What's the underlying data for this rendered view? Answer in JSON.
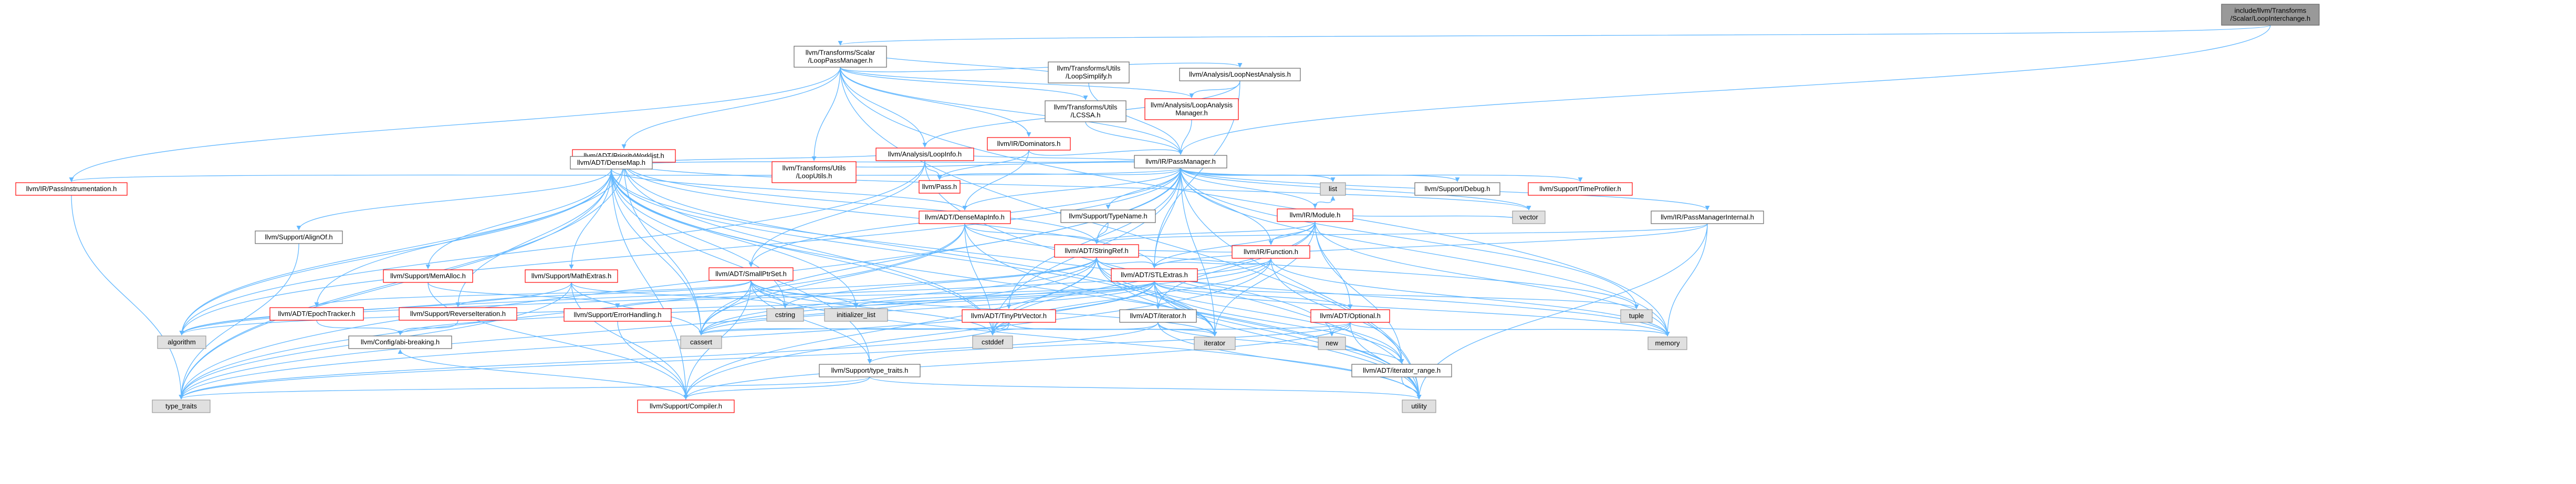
{
  "colors": {
    "edge_include": "#63b8ff",
    "edge_indirect": "#9a32cd",
    "edge_other": "#8b1a1a",
    "node_root_fill": "#999999",
    "node_root_stroke": "#666666",
    "node_documented_fill": "#ffffff",
    "node_documented_stroke": "#666666",
    "node_external_fill": "#e0e0e0",
    "node_external_stroke": "#999999",
    "node_incomplete_stroke": "#ff0000"
  },
  "nodes": [
    {
      "id": "LoopInterchange",
      "lines": [
        "include/llvm/Transforms",
        "/Scalar/LoopInterchange.h"
      ],
      "kind": "root"
    },
    {
      "id": "LoopPassManager",
      "lines": [
        "llvm/Transforms/Scalar",
        "/LoopPassManager.h"
      ],
      "kind": "documented"
    },
    {
      "id": "PassInstrumentation",
      "lines": [
        "llvm/IR/PassInstrumentation.h"
      ],
      "kind": "incomplete"
    },
    {
      "id": "PriorityWorklist",
      "lines": [
        "llvm/ADT/PriorityWorklist.h"
      ],
      "kind": "incomplete"
    },
    {
      "id": "LoopInfo",
      "lines": [
        "llvm/Analysis/LoopInfo.h"
      ],
      "kind": "incomplete"
    },
    {
      "id": "Dominators",
      "lines": [
        "llvm/IR/Dominators.h"
      ],
      "kind": "incomplete"
    },
    {
      "id": "LoopUtils",
      "lines": [
        "llvm/Transforms/Utils",
        "/LoopUtils.h"
      ],
      "kind": "incomplete"
    },
    {
      "id": "LCSSA",
      "lines": [
        "llvm/Transforms/Utils",
        "/LCSSA.h"
      ],
      "kind": "documented"
    },
    {
      "id": "LoopSimplify",
      "lines": [
        "llvm/Transforms/Utils",
        "/LoopSimplify.h"
      ],
      "kind": "documented"
    },
    {
      "id": "LoopAnalysisManager",
      "lines": [
        "llvm/Analysis/LoopAnalysis",
        "Manager.h"
      ],
      "kind": "incomplete"
    },
    {
      "id": "LoopNestAnalysis",
      "lines": [
        "llvm/Analysis/LoopNestAnalysis.h"
      ],
      "kind": "documented"
    },
    {
      "id": "PassManager",
      "lines": [
        "llvm/IR/PassManager.h"
      ],
      "kind": "documented"
    },
    {
      "id": "DenseMap",
      "lines": [
        "llvm/ADT/DenseMap.h"
      ],
      "kind": "documented"
    },
    {
      "id": "Pass",
      "lines": [
        "llvm/Pass.h"
      ],
      "kind": "incomplete"
    },
    {
      "id": "list",
      "lines": [
        "list"
      ],
      "kind": "external"
    },
    {
      "id": "Debug",
      "lines": [
        "llvm/Support/Debug.h"
      ],
      "kind": "documented"
    },
    {
      "id": "TimeProfiler",
      "lines": [
        "llvm/Support/TimeProfiler.h"
      ],
      "kind": "incomplete"
    },
    {
      "id": "Module",
      "lines": [
        "llvm/IR/Module.h"
      ],
      "kind": "incomplete"
    },
    {
      "id": "TypeName",
      "lines": [
        "llvm/Support/TypeName.h"
      ],
      "kind": "documented"
    },
    {
      "id": "DenseMapInfo",
      "lines": [
        "llvm/ADT/DenseMapInfo.h"
      ],
      "kind": "incomplete"
    },
    {
      "id": "Function",
      "lines": [
        "llvm/IR/Function.h"
      ],
      "kind": "incomplete"
    },
    {
      "id": "vector",
      "lines": [
        "vector"
      ],
      "kind": "external"
    },
    {
      "id": "PassManagerInternal",
      "lines": [
        "llvm/IR/PassManagerInternal.h"
      ],
      "kind": "documented"
    },
    {
      "id": "AlignOf",
      "lines": [
        "llvm/Support/AlignOf.h"
      ],
      "kind": "documented"
    },
    {
      "id": "StringRef",
      "lines": [
        "llvm/ADT/StringRef.h"
      ],
      "kind": "incomplete"
    },
    {
      "id": "MemAlloc",
      "lines": [
        "llvm/Support/MemAlloc.h"
      ],
      "kind": "incomplete"
    },
    {
      "id": "MathExtras",
      "lines": [
        "llvm/Support/MathExtras.h"
      ],
      "kind": "incomplete"
    },
    {
      "id": "SmallPtrSet",
      "lines": [
        "llvm/ADT/SmallPtrSet.h"
      ],
      "kind": "incomplete"
    },
    {
      "id": "STLExtras",
      "lines": [
        "llvm/ADT/STLExtras.h"
      ],
      "kind": "incomplete"
    },
    {
      "id": "EpochTracker",
      "lines": [
        "llvm/ADT/EpochTracker.h"
      ],
      "kind": "incomplete"
    },
    {
      "id": "ReverseIteration",
      "lines": [
        "llvm/Support/ReverseIteration.h"
      ],
      "kind": "incomplete"
    },
    {
      "id": "ErrorHandling",
      "lines": [
        "llvm/Support/ErrorHandling.h"
      ],
      "kind": "incomplete"
    },
    {
      "id": "cstring",
      "lines": [
        "cstring"
      ],
      "kind": "external"
    },
    {
      "id": "initializer_list",
      "lines": [
        "initializer_list"
      ],
      "kind": "external"
    },
    {
      "id": "TinyPtrVector",
      "lines": [
        "llvm/ADT/TinyPtrVector.h"
      ],
      "kind": "incomplete"
    },
    {
      "id": "ADTIterator",
      "lines": [
        "llvm/ADT/iterator.h"
      ],
      "kind": "documented"
    },
    {
      "id": "Optional",
      "lines": [
        "llvm/ADT/Optional.h"
      ],
      "kind": "incomplete"
    },
    {
      "id": "tuple",
      "lines": [
        "tuple"
      ],
      "kind": "external"
    },
    {
      "id": "algorithm",
      "lines": [
        "algorithm"
      ],
      "kind": "external"
    },
    {
      "id": "ConfigAbi",
      "lines": [
        "llvm/Config/abi-breaking.h"
      ],
      "kind": "documented"
    },
    {
      "id": "cassert",
      "lines": [
        "cassert"
      ],
      "kind": "external"
    },
    {
      "id": "cstddef",
      "lines": [
        "cstddef"
      ],
      "kind": "external"
    },
    {
      "id": "iterator",
      "lines": [
        "iterator"
      ],
      "kind": "external"
    },
    {
      "id": "new",
      "lines": [
        "new"
      ],
      "kind": "external"
    },
    {
      "id": "memory",
      "lines": [
        "memory"
      ],
      "kind": "external"
    },
    {
      "id": "TypeTraitsH",
      "lines": [
        "llvm/Support/type_traits.h"
      ],
      "kind": "documented"
    },
    {
      "id": "IteratorRange",
      "lines": [
        "llvm/ADT/iterator_range.h"
      ],
      "kind": "documented"
    },
    {
      "id": "type_traits",
      "lines": [
        "type_traits"
      ],
      "kind": "external"
    },
    {
      "id": "Compiler",
      "lines": [
        "llvm/Support/Compiler.h"
      ],
      "kind": "incomplete"
    },
    {
      "id": "utility",
      "lines": [
        "utility"
      ],
      "kind": "external"
    }
  ],
  "edges": [
    [
      "LoopInterchange",
      "LoopPassManager"
    ],
    [
      "LoopInterchange",
      "PassManager"
    ],
    [
      "LoopPassManager",
      "PassInstrumentation"
    ],
    [
      "LoopPassManager",
      "PriorityWorklist"
    ],
    [
      "LoopPassManager",
      "LoopInfo"
    ],
    [
      "LoopPassManager",
      "Dominators"
    ],
    [
      "LoopPassManager",
      "LoopUtils"
    ],
    [
      "LoopPassManager",
      "LCSSA"
    ],
    [
      "LoopPassManager",
      "LoopSimplify"
    ],
    [
      "LoopPassManager",
      "LoopAnalysisManager"
    ],
    [
      "LoopPassManager",
      "LoopNestAnalysis"
    ],
    [
      "LoopPassManager",
      "PassManager"
    ],
    [
      "LoopPassManager",
      "memory"
    ],
    [
      "LoopPassManager",
      "utility"
    ],
    [
      "PassInstrumentation",
      "type_traits"
    ],
    [
      "PriorityWorklist",
      "DenseMap"
    ],
    [
      "PriorityWorklist",
      "StringRef"
    ],
    [
      "PriorityWorklist",
      "STLExtras"
    ],
    [
      "PriorityWorklist",
      "algorithm"
    ],
    [
      "PriorityWorklist",
      "cassert"
    ],
    [
      "PriorityWorklist",
      "cstddef"
    ],
    [
      "PriorityWorklist",
      "iterator"
    ],
    [
      "PriorityWorklist",
      "type_traits"
    ],
    [
      "PriorityWorklist",
      "vector"
    ],
    [
      "LoopInfo",
      "PassManager"
    ],
    [
      "LoopInfo",
      "Pass"
    ],
    [
      "LoopInfo",
      "DenseMap"
    ],
    [
      "LoopInfo",
      "SmallPtrSet"
    ],
    [
      "LoopInfo",
      "algorithm"
    ],
    [
      "LoopInfo",
      "utility"
    ],
    [
      "Dominators",
      "PassManager"
    ],
    [
      "Dominators",
      "Pass"
    ],
    [
      "Dominators",
      "DenseMapInfo"
    ],
    [
      "LoopUtils",
      "PassManager"
    ],
    [
      "LCSSA",
      "PassManager"
    ],
    [
      "LoopSimplify",
      "PassManager"
    ],
    [
      "LoopAnalysisManager",
      "PassManager"
    ],
    [
      "LoopNestAnalysis",
      "LoopAnalysisManager"
    ],
    [
      "LoopNestAnalysis",
      "LoopInfo"
    ],
    [
      "LoopNestAnalysis",
      "STLExtras"
    ],
    [
      "PassManager",
      "DenseMap"
    ],
    [
      "PassManager",
      "Pass"
    ],
    [
      "PassManager",
      "list"
    ],
    [
      "PassManager",
      "Debug"
    ],
    [
      "PassManager",
      "TimeProfiler"
    ],
    [
      "PassManager",
      "Module"
    ],
    [
      "PassManager",
      "TypeName"
    ],
    [
      "PassManager",
      "DenseMapInfo"
    ],
    [
      "PassManager",
      "Function"
    ],
    [
      "PassManager",
      "vector"
    ],
    [
      "PassManager",
      "PassManagerInternal"
    ],
    [
      "PassManager",
      "StringRef"
    ],
    [
      "PassManager",
      "STLExtras"
    ],
    [
      "PassManager",
      "SmallPtrSet"
    ],
    [
      "PassManager",
      "TinyPtrVector"
    ],
    [
      "PassManager",
      "algorithm"
    ],
    [
      "PassManager",
      "cassert"
    ],
    [
      "PassManager",
      "cstddef"
    ],
    [
      "PassManager",
      "iterator"
    ],
    [
      "PassManager",
      "memory"
    ],
    [
      "PassManager",
      "tuple"
    ],
    [
      "PassManager",
      "type_traits"
    ],
    [
      "PassManager",
      "utility"
    ],
    [
      "PassManager",
      "PassInstrumentation"
    ],
    [
      "DenseMap",
      "DenseMapInfo"
    ],
    [
      "DenseMap",
      "EpochTracker"
    ],
    [
      "DenseMap",
      "AlignOf"
    ],
    [
      "DenseMap",
      "Compiler"
    ],
    [
      "DenseMap",
      "MathExtras"
    ],
    [
      "DenseMap",
      "MemAlloc"
    ],
    [
      "DenseMap",
      "ReverseIteration"
    ],
    [
      "DenseMap",
      "TypeTraitsH"
    ],
    [
      "DenseMap",
      "algorithm"
    ],
    [
      "DenseMap",
      "cassert"
    ],
    [
      "DenseMap",
      "cstddef"
    ],
    [
      "DenseMap",
      "cstring"
    ],
    [
      "DenseMap",
      "initializer_list"
    ],
    [
      "DenseMap",
      "iterator"
    ],
    [
      "DenseMap",
      "new"
    ],
    [
      "DenseMap",
      "type_traits"
    ],
    [
      "DenseMap",
      "utility"
    ],
    [
      "Module",
      "Function"
    ],
    [
      "Module",
      "StringRef"
    ],
    [
      "Module",
      "STLExtras"
    ],
    [
      "Module",
      "Optional"
    ],
    [
      "Module",
      "ADTIterator"
    ],
    [
      "Module",
      "IteratorRange"
    ],
    [
      "Module",
      "cstddef"
    ],
    [
      "Module",
      "iterator"
    ],
    [
      "Module",
      "memory"
    ],
    [
      "Module",
      "vector"
    ],
    [
      "Module",
      "list"
    ],
    [
      "TypeName",
      "StringRef"
    ],
    [
      "DenseMapInfo",
      "StringRef"
    ],
    [
      "DenseMapInfo",
      "cassert"
    ],
    [
      "DenseMapInfo",
      "cstddef"
    ],
    [
      "DenseMapInfo",
      "tuple"
    ],
    [
      "DenseMapInfo",
      "type_traits"
    ],
    [
      "DenseMapInfo",
      "utility"
    ],
    [
      "Function",
      "StringRef"
    ],
    [
      "Function",
      "STLExtras"
    ],
    [
      "Function",
      "Compiler"
    ],
    [
      "Function",
      "algorithm"
    ],
    [
      "Function",
      "cassert"
    ],
    [
      "Function",
      "cstddef"
    ],
    [
      "Function",
      "memory"
    ],
    [
      "Function",
      "IteratorRange"
    ],
    [
      "PassManagerInternal",
      "STLExtras"
    ],
    [
      "PassManagerInternal",
      "StringRef"
    ],
    [
      "PassManagerInternal",
      "memory"
    ],
    [
      "PassManagerInternal",
      "utility"
    ],
    [
      "AlignOf",
      "type_traits"
    ],
    [
      "StringRef",
      "STLExtras"
    ],
    [
      "StringRef",
      "IteratorRange"
    ],
    [
      "StringRef",
      "Compiler"
    ],
    [
      "StringRef",
      "algorithm"
    ],
    [
      "StringRef",
      "cassert"
    ],
    [
      "StringRef",
      "cstddef"
    ],
    [
      "StringRef",
      "cstring"
    ],
    [
      "StringRef",
      "iterator"
    ],
    [
      "StringRef",
      "memory"
    ],
    [
      "StringRef",
      "type_traits"
    ],
    [
      "StringRef",
      "utility"
    ],
    [
      "MemAlloc",
      "Compiler"
    ],
    [
      "MemAlloc",
      "ErrorHandling"
    ],
    [
      "MathExtras",
      "Compiler"
    ],
    [
      "MathExtras",
      "algorithm"
    ],
    [
      "MathExtras",
      "cassert"
    ],
    [
      "MathExtras",
      "cstring"
    ],
    [
      "MathExtras",
      "type_traits"
    ],
    [
      "SmallPtrSet",
      "EpochTracker"
    ],
    [
      "SmallPtrSet",
      "Compiler"
    ],
    [
      "SmallPtrSet",
      "ReverseIteration"
    ],
    [
      "SmallPtrSet",
      "TypeTraitsH"
    ],
    [
      "SmallPtrSet",
      "cassert"
    ],
    [
      "SmallPtrSet",
      "cstddef"
    ],
    [
      "SmallPtrSet",
      "cstring"
    ],
    [
      "SmallPtrSet",
      "initializer_list"
    ],
    [
      "SmallPtrSet",
      "iterator"
    ],
    [
      "SmallPtrSet",
      "utility"
    ],
    [
      "STLExtras",
      "Optional"
    ],
    [
      "STLExtras",
      "ADTIterator"
    ],
    [
      "STLExtras",
      "IteratorRange"
    ],
    [
      "STLExtras",
      "ErrorHandling"
    ],
    [
      "STLExtras",
      "algorithm"
    ],
    [
      "STLExtras",
      "cassert"
    ],
    [
      "STLExtras",
      "cstddef"
    ],
    [
      "STLExtras",
      "initializer_list"
    ],
    [
      "STLExtras",
      "iterator"
    ],
    [
      "STLExtras",
      "memory"
    ],
    [
      "STLExtras",
      "tuple"
    ],
    [
      "STLExtras",
      "type_traits"
    ],
    [
      "STLExtras",
      "utility"
    ],
    [
      "STLExtras",
      "ConfigAbi"
    ],
    [
      "EpochTracker",
      "ConfigAbi"
    ],
    [
      "ReverseIteration",
      "ConfigAbi"
    ],
    [
      "ErrorHandling",
      "Compiler"
    ],
    [
      "TinyPtrVector",
      "cassert"
    ],
    [
      "TinyPtrVector",
      "cstddef"
    ],
    [
      "TinyPtrVector",
      "iterator"
    ],
    [
      "TinyPtrVector",
      "type_traits"
    ],
    [
      "ADTIterator",
      "IteratorRange"
    ],
    [
      "ADTIterator",
      "cstddef"
    ],
    [
      "ADTIterator",
      "iterator"
    ],
    [
      "ADTIterator",
      "type_traits"
    ],
    [
      "ADTIterator",
      "utility"
    ],
    [
      "Optional",
      "Compiler"
    ],
    [
      "Optional",
      "TypeTraitsH"
    ],
    [
      "Optional",
      "cassert"
    ],
    [
      "Optional",
      "new"
    ],
    [
      "Optional",
      "utility"
    ],
    [
      "Optional",
      "memory"
    ],
    [
      "TypeTraitsH",
      "Compiler"
    ],
    [
      "TypeTraitsH",
      "type_traits"
    ],
    [
      "TypeTraitsH",
      "utility"
    ],
    [
      "IteratorRange",
      "utility"
    ],
    [
      "Compiler",
      "ConfigAbi"
    ]
  ]
}
